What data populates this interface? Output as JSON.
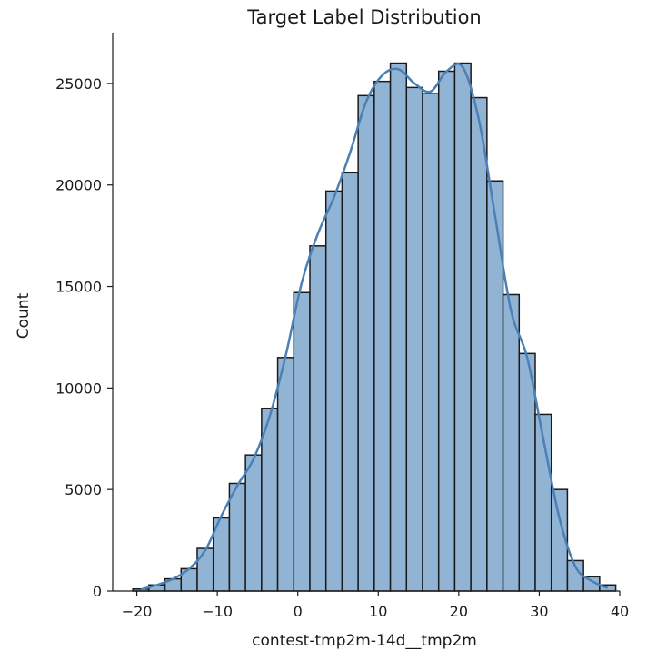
{
  "chart_data": {
    "type": "bar",
    "title": "Target Label Distribution",
    "xlabel": "contest-tmp2m-14d__tmp2m",
    "ylabel": "Count",
    "xlim": [
      -23,
      40
    ],
    "ylim": [
      0,
      27500
    ],
    "xticks": [
      -20,
      -10,
      0,
      10,
      20,
      30,
      40
    ],
    "yticks": [
      0,
      5000,
      10000,
      15000,
      20000,
      25000
    ],
    "bin_edges": [
      -20.5,
      -18.5,
      -16.5,
      -14.5,
      -12.5,
      -10.5,
      -8.5,
      -6.5,
      -4.5,
      -2.5,
      -0.5,
      1.5,
      3.5,
      5.5,
      7.5,
      9.5,
      11.5,
      13.5,
      15.5,
      17.5,
      19.5,
      21.5,
      23.5,
      25.5,
      27.5,
      29.5,
      31.5,
      33.5,
      35.5,
      37.5
    ],
    "counts": [
      100,
      300,
      600,
      1100,
      2100,
      3600,
      5300,
      6700,
      9000,
      11500,
      14700,
      17000,
      19700,
      20600,
      24400,
      25100,
      26000,
      24800,
      24500,
      25600,
      26000,
      24300,
      20200,
      14600,
      11700,
      8700,
      5000,
      1500,
      700,
      300
    ],
    "kde": {
      "x": [
        -20.5,
        -18.5,
        -16.5,
        -14.5,
        -12.5,
        -10.5,
        -8.5,
        -6.5,
        -4.5,
        -2.5,
        -0.5,
        1.5,
        3.5,
        5.5,
        7.5,
        9.5,
        11.5,
        13.5,
        15.5,
        17.5,
        19.5,
        21.5,
        23.5,
        25.5,
        27.5,
        29.5,
        31.5,
        33.5,
        35.5,
        37.5
      ],
      "y": [
        80,
        300,
        600,
        1100,
        2000,
        3700,
        5200,
        6500,
        8600,
        11600,
        15200,
        17600,
        19400,
        21600,
        24100,
        25400,
        25700,
        25000,
        24600,
        25600,
        25800,
        23200,
        18500,
        13800,
        11500,
        7500,
        3600,
        1200,
        500,
        150
      ]
    },
    "colors": {
      "bar_fill": "#92b4d4",
      "bar_edge": "#1a1a1a",
      "kde_line": "#4a80b5"
    },
    "grid": false,
    "legend": "none"
  }
}
